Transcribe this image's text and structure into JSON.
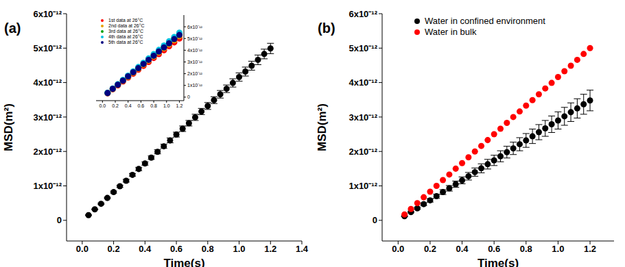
{
  "chart_data": [
    {
      "type": "scatter",
      "title": "(a)",
      "x_label": "Time(s)",
      "y_label": "MSD(m²)",
      "x": [
        0.04,
        0.08,
        0.12,
        0.16,
        0.2,
        0.24,
        0.28,
        0.32,
        0.36,
        0.4,
        0.44,
        0.48,
        0.52,
        0.56,
        0.6,
        0.64,
        0.68,
        0.72,
        0.76,
        0.8,
        0.84,
        0.88,
        0.92,
        0.96,
        1.0,
        1.04,
        1.08,
        1.12,
        1.16,
        1.2
      ],
      "series": [
        {
          "color": "#000000",
          "marker": "circle",
          "values": [
            1.5e-13,
            3.2e-13,
            4.8e-13,
            6.5e-13,
            8.2e-13,
            9.9e-13,
            1.15e-12,
            1.32e-12,
            1.49e-12,
            1.65e-12,
            1.82e-12,
            1.99e-12,
            2.15e-12,
            2.32e-12,
            2.49e-12,
            2.66e-12,
            2.82e-12,
            2.99e-12,
            3.16e-12,
            3.32e-12,
            3.49e-12,
            3.66e-12,
            3.82e-12,
            3.99e-12,
            4.16e-12,
            4.32e-12,
            4.49e-12,
            4.66e-12,
            4.83e-12,
            4.99e-12
          ],
          "errors": [
            1e-14,
            1e-14,
            2e-14,
            2e-14,
            3e-14,
            3e-14,
            4e-14,
            4e-14,
            5e-14,
            5e-14,
            5e-14,
            6e-14,
            6e-14,
            7e-14,
            7e-14,
            8e-14,
            8e-14,
            9e-14,
            9e-14,
            1e-13,
            1e-13,
            1.1e-13,
            1.1e-13,
            1.2e-13,
            1.2e-13,
            1.3e-13,
            1.3e-13,
            1.4e-13,
            1.4e-13,
            1.5e-13
          ]
        }
      ],
      "xlim": [
        -0.1,
        1.4
      ],
      "xticks": [
        {
          "value": 0,
          "label": "0.0"
        },
        0.2,
        0.4,
        0.6,
        0.8,
        {
          "value": 1,
          "label": "1.0"
        },
        1.2,
        1.4
      ],
      "ylim": [
        -6e-13,
        6e-12
      ],
      "yticks": [
        0,
        {
          "value": 1e-12,
          "label": "1x10⁻¹²"
        },
        {
          "value": 2e-12,
          "label": "2x10⁻¹²"
        },
        {
          "value": 3e-12,
          "label": "3x10⁻¹²"
        },
        {
          "value": 4e-12,
          "label": "4x10⁻¹²"
        },
        {
          "value": 5e-12,
          "label": "5x10⁻¹²"
        },
        {
          "value": 6e-12,
          "label": "6x10⁻¹²"
        }
      ],
      "inset": {
        "type": "scatter",
        "legend": "upper left",
        "x": [
          0.08,
          0.16,
          0.24,
          0.32,
          0.4,
          0.48,
          0.56,
          0.64,
          0.72,
          0.8,
          0.88,
          0.96,
          1.04,
          1.12,
          1.2
        ],
        "series": [
          {
            "name": "1st data at 26°C",
            "color": "#ff0000",
            "marker": "circle",
            "values": [
              3.3e-13,
              6.7e-13,
              1e-12,
              1.33e-12,
              1.67e-12,
              2e-12,
              2.34e-12,
              2.67e-12,
              3e-12,
              3.34e-12,
              3.67e-12,
              4e-12,
              4.34e-12,
              4.67e-12,
              5e-12
            ]
          },
          {
            "name": "2nd data at 26°C",
            "color": "#e6a000",
            "marker": "circle",
            "values": [
              3.5e-13,
              6.9e-13,
              1.04e-12,
              1.39e-12,
              1.73e-12,
              2.08e-12,
              2.43e-12,
              2.77e-12,
              3.12e-12,
              3.47e-12,
              3.81e-12,
              4.16e-12,
              4.5e-12,
              4.85e-12,
              5.2e-12
            ]
          },
          {
            "name": "3rd data at 26°C",
            "color": "#00a000",
            "marker": "circle",
            "values": [
              3.6e-13,
              7.2e-13,
              1.08e-12,
              1.44e-12,
              1.8e-12,
              2.16e-12,
              2.52e-12,
              2.88e-12,
              3.24e-12,
              3.6e-12,
              3.96e-12,
              4.32e-12,
              4.68e-12,
              5.04e-12,
              5.4e-12
            ]
          },
          {
            "name": "4th data at 26°C",
            "color": "#00c0e0",
            "marker": "circle",
            "values": [
              3.7e-13,
              7.3e-13,
              1.1e-12,
              1.47e-12,
              1.83e-12,
              2.2e-12,
              2.57e-12,
              2.93e-12,
              3.3e-12,
              3.67e-12,
              4.03e-12,
              4.4e-12,
              4.77e-12,
              5.13e-12,
              5.5e-12
            ]
          },
          {
            "name": "5th data at 26°C",
            "color": "#000080",
            "marker": "circle",
            "values": [
              3.5e-13,
              7.1e-13,
              1.06e-12,
              1.41e-12,
              1.77e-12,
              2.12e-12,
              2.47e-12,
              2.83e-12,
              3.18e-12,
              3.53e-12,
              3.89e-12,
              4.24e-12,
              4.59e-12,
              4.95e-12,
              5.3e-12
            ]
          }
        ],
        "xlim": [
          -0.1,
          1.27
        ],
        "xticks": [
          {
            "value": 0,
            "label": "0.0"
          },
          0.2,
          0.4,
          0.6,
          0.8,
          {
            "value": 1,
            "label": "1.0"
          },
          1.2
        ],
        "ylim": [
          -3e-13,
          7e-12
        ],
        "yticks": [
          0,
          {
            "value": 1e-12,
            "label": "1x10⁻¹²"
          },
          {
            "value": 2e-12,
            "label": "2x10⁻¹²"
          },
          {
            "value": 3e-12,
            "label": "3x10⁻¹²"
          },
          {
            "value": 4e-12,
            "label": "4x10⁻¹²"
          },
          {
            "value": 5e-12,
            "label": "5x10⁻¹²"
          },
          {
            "value": 6e-12,
            "label": "6x10⁻¹²"
          }
        ]
      }
    },
    {
      "type": "scatter",
      "title": "(b)",
      "x_label": "Time(s)",
      "y_label": "MSD(m²)",
      "legend": "upper left",
      "x": [
        0.04,
        0.08,
        0.12,
        0.16,
        0.2,
        0.24,
        0.28,
        0.32,
        0.36,
        0.4,
        0.44,
        0.48,
        0.52,
        0.56,
        0.6,
        0.64,
        0.68,
        0.72,
        0.76,
        0.8,
        0.84,
        0.88,
        0.92,
        0.96,
        1.0,
        1.04,
        1.08,
        1.12,
        1.16,
        1.2
      ],
      "series": [
        {
          "name": "Water in confined environment",
          "color": "#000000",
          "marker": "circle",
          "values": [
            1.2e-13,
            2.4e-13,
            3.5e-13,
            4.7e-13,
            5.8e-13,
            7e-13,
            8.2e-13,
            9.3e-13,
            1.05e-12,
            1.16e-12,
            1.28e-12,
            1.4e-12,
            1.51e-12,
            1.63e-12,
            1.74e-12,
            1.86e-12,
            1.98e-12,
            2.09e-12,
            2.21e-12,
            2.32e-12,
            2.44e-12,
            2.56e-12,
            2.67e-12,
            2.79e-12,
            2.9e-12,
            3.02e-12,
            3.14e-12,
            3.25e-12,
            3.37e-12,
            3.48e-12
          ],
          "errors": [
            1e-14,
            2e-14,
            3e-14,
            4e-14,
            5e-14,
            6e-14,
            7e-14,
            8e-14,
            9e-14,
            1e-13,
            1.1e-13,
            1.2e-13,
            1.3e-13,
            1.4e-13,
            1.5e-13,
            1.6e-13,
            1.7e-13,
            1.8e-13,
            1.9e-13,
            2e-13,
            2.1e-13,
            2.2e-13,
            2.3e-13,
            2.4e-13,
            2.5e-13,
            2.6e-13,
            2.7e-13,
            2.8e-13,
            2.9e-13,
            3e-13
          ]
        },
        {
          "name": "Water in bulk",
          "color": "#ff0000",
          "marker": "circle",
          "values": [
            1.7e-13,
            3.3e-13,
            5e-13,
            6.7e-13,
            8.3e-13,
            1e-12,
            1.17e-12,
            1.33e-12,
            1.5e-12,
            1.66e-12,
            1.83e-12,
            2e-12,
            2.16e-12,
            2.33e-12,
            2.5e-12,
            2.66e-12,
            2.83e-12,
            3e-12,
            3.16e-12,
            3.33e-12,
            3.49e-12,
            3.66e-12,
            3.83e-12,
            3.99e-12,
            4.16e-12,
            4.33e-12,
            4.49e-12,
            4.66e-12,
            4.83e-12,
            5e-12
          ]
        }
      ],
      "xlim": [
        -0.1,
        1.35
      ],
      "xticks": [
        {
          "value": 0,
          "label": "0.0"
        },
        0.2,
        0.4,
        0.6,
        0.8,
        {
          "value": 1,
          "label": "1.0"
        },
        1.2
      ],
      "ylim": [
        -6e-13,
        6e-12
      ],
      "yticks": [
        0,
        {
          "value": 1e-12,
          "label": "1x10⁻¹²"
        },
        {
          "value": 2e-12,
          "label": "2x10⁻¹²"
        },
        {
          "value": 3e-12,
          "label": "3x10⁻¹²"
        },
        {
          "value": 4e-12,
          "label": "4x10⁻¹²"
        },
        {
          "value": 5e-12,
          "label": "5x10⁻¹²"
        },
        {
          "value": 6e-12,
          "label": "6x10⁻¹²"
        }
      ]
    }
  ]
}
